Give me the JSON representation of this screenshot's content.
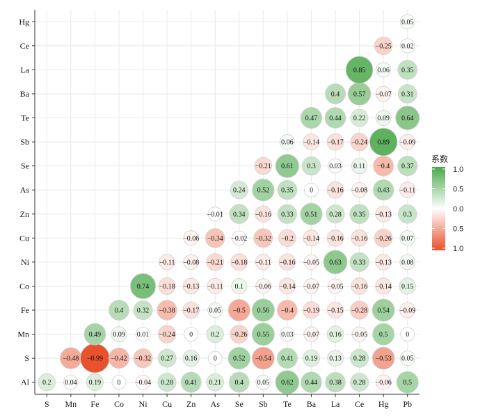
{
  "chart_data": {
    "type": "heatmap",
    "x_labels": [
      "S",
      "Mn",
      "Fe",
      "Co",
      "Ni",
      "Cu",
      "Zn",
      "As",
      "Se",
      "Sb",
      "Te",
      "Ba",
      "La",
      "Ce",
      "Hg",
      "Pb"
    ],
    "y_labels": [
      "Al",
      "S",
      "Mn",
      "Fe",
      "Co",
      "Ni",
      "Cu",
      "Zn",
      "As",
      "Se",
      "Sb",
      "Te",
      "Ba",
      "La",
      "Ce",
      "Hg"
    ],
    "cells": [
      {
        "x": "S",
        "y": "Al",
        "v": 0.2,
        "label": "0.2"
      },
      {
        "x": "Mn",
        "y": "Al",
        "v": 0.04,
        "label": "0.04"
      },
      {
        "x": "Fe",
        "y": "Al",
        "v": 0.19,
        "label": "0.19"
      },
      {
        "x": "Co",
        "y": "Al",
        "v": 0,
        "label": "0"
      },
      {
        "x": "Ni",
        "y": "Al",
        "v": -0.04,
        "label": "−0.04"
      },
      {
        "x": "Cu",
        "y": "Al",
        "v": 0.28,
        "label": "0.28"
      },
      {
        "x": "Zn",
        "y": "Al",
        "v": 0.41,
        "label": "0.41"
      },
      {
        "x": "As",
        "y": "Al",
        "v": 0.21,
        "label": "0.21"
      },
      {
        "x": "Se",
        "y": "Al",
        "v": 0.4,
        "label": "0.4"
      },
      {
        "x": "Sb",
        "y": "Al",
        "v": 0.05,
        "label": "0.05"
      },
      {
        "x": "Te",
        "y": "Al",
        "v": 0.62,
        "label": "0.62"
      },
      {
        "x": "Ba",
        "y": "Al",
        "v": 0.44,
        "label": "0.44"
      },
      {
        "x": "La",
        "y": "Al",
        "v": 0.38,
        "label": "0.38"
      },
      {
        "x": "Ce",
        "y": "Al",
        "v": 0.28,
        "label": "0.28"
      },
      {
        "x": "Hg",
        "y": "Al",
        "v": -0.06,
        "label": "−0.06"
      },
      {
        "x": "Pb",
        "y": "Al",
        "v": 0.5,
        "label": "0.5"
      },
      {
        "x": "Mn",
        "y": "S",
        "v": -0.48,
        "label": "−0.48"
      },
      {
        "x": "Fe",
        "y": "S",
        "v": -0.99,
        "label": "−0.99"
      },
      {
        "x": "Co",
        "y": "S",
        "v": -0.42,
        "label": "−0.42"
      },
      {
        "x": "Ni",
        "y": "S",
        "v": -0.32,
        "label": "−0.32"
      },
      {
        "x": "Cu",
        "y": "S",
        "v": 0.27,
        "label": "0.27"
      },
      {
        "x": "Zn",
        "y": "S",
        "v": 0.16,
        "label": "0.16"
      },
      {
        "x": "As",
        "y": "S",
        "v": 0,
        "label": "0"
      },
      {
        "x": "Se",
        "y": "S",
        "v": 0.52,
        "label": "0.52"
      },
      {
        "x": "Sb",
        "y": "S",
        "v": -0.54,
        "label": "−0.54"
      },
      {
        "x": "Te",
        "y": "S",
        "v": 0.41,
        "label": "0.41"
      },
      {
        "x": "Ba",
        "y": "S",
        "v": 0.19,
        "label": "0.19"
      },
      {
        "x": "La",
        "y": "S",
        "v": 0.13,
        "label": "0.13"
      },
      {
        "x": "Ce",
        "y": "S",
        "v": 0.28,
        "label": "0.28"
      },
      {
        "x": "Hg",
        "y": "S",
        "v": -0.53,
        "label": "−0.53"
      },
      {
        "x": "Pb",
        "y": "S",
        "v": 0.05,
        "label": "0.05"
      },
      {
        "x": "Fe",
        "y": "Mn",
        "v": 0.49,
        "label": "0.49"
      },
      {
        "x": "Co",
        "y": "Mn",
        "v": 0.09,
        "label": "0.09"
      },
      {
        "x": "Ni",
        "y": "Mn",
        "v": 0.01,
        "label": "0.01"
      },
      {
        "x": "Cu",
        "y": "Mn",
        "v": -0.24,
        "label": "−0.24"
      },
      {
        "x": "Zn",
        "y": "Mn",
        "v": 0,
        "label": "0"
      },
      {
        "x": "As",
        "y": "Mn",
        "v": 0.2,
        "label": "0.2"
      },
      {
        "x": "Se",
        "y": "Mn",
        "v": -0.26,
        "label": "−0.26"
      },
      {
        "x": "Sb",
        "y": "Mn",
        "v": 0.55,
        "label": "0.55"
      },
      {
        "x": "Te",
        "y": "Mn",
        "v": 0.03,
        "label": "0.03"
      },
      {
        "x": "Ba",
        "y": "Mn",
        "v": -0.07,
        "label": "−0.07"
      },
      {
        "x": "La",
        "y": "Mn",
        "v": 0.16,
        "label": "0.16"
      },
      {
        "x": "Ce",
        "y": "Mn",
        "v": -0.05,
        "label": "−0.05"
      },
      {
        "x": "Hg",
        "y": "Mn",
        "v": 0.5,
        "label": "0.5"
      },
      {
        "x": "Pb",
        "y": "Mn",
        "v": 0,
        "label": "0"
      },
      {
        "x": "Co",
        "y": "Fe",
        "v": 0.4,
        "label": "0.4"
      },
      {
        "x": "Ni",
        "y": "Fe",
        "v": 0.32,
        "label": "0.32"
      },
      {
        "x": "Cu",
        "y": "Fe",
        "v": -0.38,
        "label": "−0.38"
      },
      {
        "x": "Zn",
        "y": "Fe",
        "v": -0.17,
        "label": "−0.17"
      },
      {
        "x": "As",
        "y": "Fe",
        "v": 0.05,
        "label": "0.05"
      },
      {
        "x": "Se",
        "y": "Fe",
        "v": -0.5,
        "label": "−0.5"
      },
      {
        "x": "Sb",
        "y": "Fe",
        "v": 0.56,
        "label": "0.56"
      },
      {
        "x": "Te",
        "y": "Fe",
        "v": -0.4,
        "label": "−0.4"
      },
      {
        "x": "Ba",
        "y": "Fe",
        "v": -0.19,
        "label": "−0.19"
      },
      {
        "x": "La",
        "y": "Fe",
        "v": -0.15,
        "label": "−0.15"
      },
      {
        "x": "Ce",
        "y": "Fe",
        "v": -0.28,
        "label": "−0.28"
      },
      {
        "x": "Hg",
        "y": "Fe",
        "v": 0.54,
        "label": "0.54"
      },
      {
        "x": "Pb",
        "y": "Fe",
        "v": -0.09,
        "label": "−0.09"
      },
      {
        "x": "Ni",
        "y": "Co",
        "v": 0.74,
        "label": "0.74"
      },
      {
        "x": "Cu",
        "y": "Co",
        "v": -0.18,
        "label": "−0.18"
      },
      {
        "x": "Zn",
        "y": "Co",
        "v": -0.13,
        "label": "−0.13"
      },
      {
        "x": "As",
        "y": "Co",
        "v": -0.11,
        "label": "−0.11"
      },
      {
        "x": "Se",
        "y": "Co",
        "v": 0.1,
        "label": "0.1"
      },
      {
        "x": "Sb",
        "y": "Co",
        "v": -0.06,
        "label": "−0.06"
      },
      {
        "x": "Te",
        "y": "Co",
        "v": -0.14,
        "label": "−0.14"
      },
      {
        "x": "Ba",
        "y": "Co",
        "v": -0.07,
        "label": "−0.07"
      },
      {
        "x": "La",
        "y": "Co",
        "v": -0.05,
        "label": "−0.05"
      },
      {
        "x": "Ce",
        "y": "Co",
        "v": -0.16,
        "label": "−0.16"
      },
      {
        "x": "Hg",
        "y": "Co",
        "v": -0.14,
        "label": "−0.14"
      },
      {
        "x": "Pb",
        "y": "Co",
        "v": 0.15,
        "label": "0.15"
      },
      {
        "x": "Cu",
        "y": "Ni",
        "v": -0.11,
        "label": "−0.11"
      },
      {
        "x": "Zn",
        "y": "Ni",
        "v": -0.08,
        "label": "−0.08"
      },
      {
        "x": "As",
        "y": "Ni",
        "v": -0.21,
        "label": "−0.21"
      },
      {
        "x": "Se",
        "y": "Ni",
        "v": -0.18,
        "label": "−0.18"
      },
      {
        "x": "Sb",
        "y": "Ni",
        "v": -0.11,
        "label": "−0.11"
      },
      {
        "x": "Te",
        "y": "Ni",
        "v": -0.16,
        "label": "−0.16"
      },
      {
        "x": "Ba",
        "y": "Ni",
        "v": -0.05,
        "label": "−0.05"
      },
      {
        "x": "La",
        "y": "Ni",
        "v": 0.63,
        "label": "0.63"
      },
      {
        "x": "Ce",
        "y": "Ni",
        "v": 0.33,
        "label": "0.33"
      },
      {
        "x": "Hg",
        "y": "Ni",
        "v": -0.13,
        "label": "−0.13"
      },
      {
        "x": "Pb",
        "y": "Ni",
        "v": 0.08,
        "label": "0.08"
      },
      {
        "x": "Zn",
        "y": "Cu",
        "v": -0.06,
        "label": "−0.06"
      },
      {
        "x": "As",
        "y": "Cu",
        "v": -0.34,
        "label": "−0.34"
      },
      {
        "x": "Se",
        "y": "Cu",
        "v": -0.02,
        "label": "−0.02"
      },
      {
        "x": "Sb",
        "y": "Cu",
        "v": -0.32,
        "label": "−0.32"
      },
      {
        "x": "Te",
        "y": "Cu",
        "v": -0.2,
        "label": "−0.2"
      },
      {
        "x": "Ba",
        "y": "Cu",
        "v": -0.14,
        "label": "−0.14"
      },
      {
        "x": "La",
        "y": "Cu",
        "v": -0.16,
        "label": "−0.16"
      },
      {
        "x": "Ce",
        "y": "Cu",
        "v": -0.16,
        "label": "−0.16"
      },
      {
        "x": "Hg",
        "y": "Cu",
        "v": -0.26,
        "label": "−0.26"
      },
      {
        "x": "Pb",
        "y": "Cu",
        "v": 0.07,
        "label": "0.07"
      },
      {
        "x": "As",
        "y": "Zn",
        "v": -0.01,
        "label": "−0.01"
      },
      {
        "x": "Se",
        "y": "Zn",
        "v": 0.34,
        "label": "0.34"
      },
      {
        "x": "Sb",
        "y": "Zn",
        "v": -0.16,
        "label": "−0.16"
      },
      {
        "x": "Te",
        "y": "Zn",
        "v": 0.33,
        "label": "0.33"
      },
      {
        "x": "Ba",
        "y": "Zn",
        "v": 0.51,
        "label": "0.51"
      },
      {
        "x": "La",
        "y": "Zn",
        "v": 0.28,
        "label": "0.28"
      },
      {
        "x": "Ce",
        "y": "Zn",
        "v": 0.35,
        "label": "0.35"
      },
      {
        "x": "Hg",
        "y": "Zn",
        "v": -0.13,
        "label": "−0.13"
      },
      {
        "x": "Pb",
        "y": "Zn",
        "v": 0.3,
        "label": "0.3"
      },
      {
        "x": "Se",
        "y": "As",
        "v": 0.24,
        "label": "0.24"
      },
      {
        "x": "Sb",
        "y": "As",
        "v": 0.52,
        "label": "0.52"
      },
      {
        "x": "Te",
        "y": "As",
        "v": 0.35,
        "label": "0.35"
      },
      {
        "x": "Ba",
        "y": "As",
        "v": 0,
        "label": "0"
      },
      {
        "x": "La",
        "y": "As",
        "v": -0.16,
        "label": "−0.16"
      },
      {
        "x": "Ce",
        "y": "As",
        "v": -0.08,
        "label": "−0.08"
      },
      {
        "x": "Hg",
        "y": "As",
        "v": 0.43,
        "label": "0.43"
      },
      {
        "x": "Pb",
        "y": "As",
        "v": -0.11,
        "label": "−0.11"
      },
      {
        "x": "Sb",
        "y": "Se",
        "v": -0.21,
        "label": "−0.21"
      },
      {
        "x": "Te",
        "y": "Se",
        "v": 0.61,
        "label": "0.61"
      },
      {
        "x": "Ba",
        "y": "Se",
        "v": 0.3,
        "label": "0.3"
      },
      {
        "x": "La",
        "y": "Se",
        "v": 0.03,
        "label": "0.03"
      },
      {
        "x": "Ce",
        "y": "Se",
        "v": 0.11,
        "label": "0.11"
      },
      {
        "x": "Hg",
        "y": "Se",
        "v": -0.4,
        "label": "−0.4"
      },
      {
        "x": "Pb",
        "y": "Se",
        "v": 0.37,
        "label": "0.37"
      },
      {
        "x": "Te",
        "y": "Sb",
        "v": 0.06,
        "label": "0.06"
      },
      {
        "x": "Ba",
        "y": "Sb",
        "v": -0.14,
        "label": "−0.14"
      },
      {
        "x": "La",
        "y": "Sb",
        "v": -0.17,
        "label": "−0.17"
      },
      {
        "x": "Ce",
        "y": "Sb",
        "v": -0.24,
        "label": "−0.24"
      },
      {
        "x": "Hg",
        "y": "Sb",
        "v": 0.89,
        "label": "0.89"
      },
      {
        "x": "Pb",
        "y": "Sb",
        "v": -0.09,
        "label": "−0.09"
      },
      {
        "x": "Ba",
        "y": "Te",
        "v": 0.47,
        "label": "0.47"
      },
      {
        "x": "La",
        "y": "Te",
        "v": 0.44,
        "label": "0.44"
      },
      {
        "x": "Ce",
        "y": "Te",
        "v": 0.22,
        "label": "0.22"
      },
      {
        "x": "Hg",
        "y": "Te",
        "v": 0.09,
        "label": "0.09"
      },
      {
        "x": "Pb",
        "y": "Te",
        "v": 0.64,
        "label": "0.64"
      },
      {
        "x": "La",
        "y": "Ba",
        "v": 0.4,
        "label": "0.4"
      },
      {
        "x": "Ce",
        "y": "Ba",
        "v": 0.57,
        "label": "0.57"
      },
      {
        "x": "Hg",
        "y": "Ba",
        "v": -0.07,
        "label": "−0.07"
      },
      {
        "x": "Pb",
        "y": "Ba",
        "v": 0.31,
        "label": "0.31"
      },
      {
        "x": "Ce",
        "y": "La",
        "v": 0.85,
        "label": "0.85"
      },
      {
        "x": "Hg",
        "y": "La",
        "v": 0.06,
        "label": "0.06"
      },
      {
        "x": "Pb",
        "y": "La",
        "v": 0.35,
        "label": "0.35"
      },
      {
        "x": "Hg",
        "y": "Ce",
        "v": -0.25,
        "label": "−0.25"
      },
      {
        "x": "Pb",
        "y": "Ce",
        "v": 0.02,
        "label": "0.02"
      },
      {
        "x": "Pb",
        "y": "Hg",
        "v": 0.05,
        "label": "0.05"
      }
    ],
    "legend": {
      "title": "系数",
      "ticks": [
        "1.0",
        "0.5",
        "0.0",
        "0.5",
        "1.0"
      ],
      "position": "right"
    },
    "colors": {
      "positive": "#4aa84a",
      "negative": "#e8502a",
      "zero": "#ffffff",
      "grid": "#e8e8e8",
      "border": "#cfcfcf"
    },
    "grid": true
  }
}
